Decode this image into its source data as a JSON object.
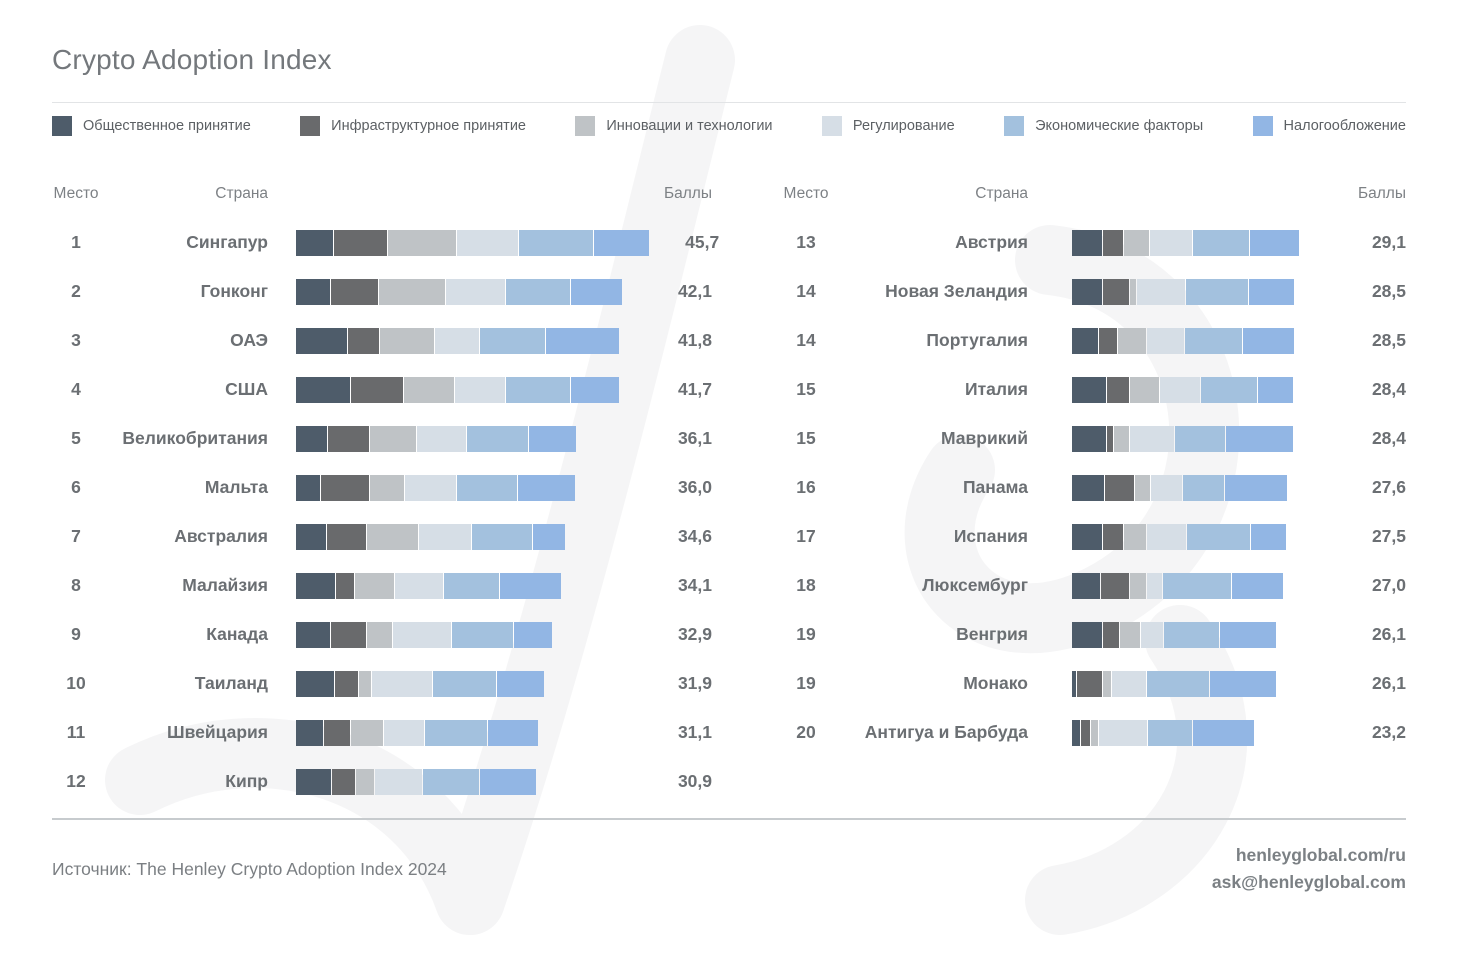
{
  "page_title": "Crypto Adoption Index",
  "legend": {
    "items": [
      {
        "label": "Общественное принятие",
        "color": "#4e5c6a"
      },
      {
        "label": "Инфраструктурное принятие",
        "color": "#696a6c"
      },
      {
        "label": "Инновации и технологии",
        "color": "#bfc3c6"
      },
      {
        "label": "Регулирование",
        "color": "#d6dee6"
      },
      {
        "label": "Экономические факторы",
        "color": "#a3c1de"
      },
      {
        "label": "Налогообложение",
        "color": "#92b6e4"
      }
    ]
  },
  "table_headers": {
    "rank": "Место",
    "country": "Страна",
    "score": "Баллы"
  },
  "chart_data": {
    "type": "bar",
    "stacked": true,
    "orientation": "horizontal",
    "title": "Crypto Adoption Index",
    "categories": [
      "Общественное принятие",
      "Инфраструктурное принятие",
      "Инновации и технологии",
      "Регулирование",
      "Экономические факторы",
      "Налогообложение"
    ],
    "colors": [
      "#4e5c6a",
      "#696a6c",
      "#bfc3c6",
      "#d6dee6",
      "#a3c1de",
      "#92b6e4"
    ],
    "legend_position": "top",
    "grid": false,
    "rows": [
      {
        "rank": "1",
        "country": "Сингапур",
        "score_label": "45,7",
        "score": 45.7,
        "segments": [
          4.8,
          7.0,
          8.9,
          8.1,
          9.6,
          7.3
        ]
      },
      {
        "rank": "2",
        "country": "Гонконг",
        "score_label": "42,1",
        "score": 42.1,
        "segments": [
          4.4,
          6.2,
          8.7,
          7.7,
          8.5,
          6.6
        ]
      },
      {
        "rank": "3",
        "country": "ОАЭ",
        "score_label": "41,8",
        "score": 41.8,
        "segments": [
          6.7,
          4.0,
          7.1,
          5.8,
          8.5,
          9.7
        ]
      },
      {
        "rank": "4",
        "country": "США",
        "score_label": "41,7",
        "score": 41.7,
        "segments": [
          7.1,
          6.8,
          6.6,
          6.6,
          8.3,
          6.3
        ]
      },
      {
        "rank": "5",
        "country": "Великобритания",
        "score_label": "36,1",
        "score": 36.1,
        "segments": [
          4.1,
          5.4,
          6.0,
          6.4,
          8.0,
          6.2
        ]
      },
      {
        "rank": "6",
        "country": "Мальта",
        "score_label": "36,0",
        "score": 36.0,
        "segments": [
          3.1,
          6.3,
          4.5,
          6.7,
          7.9,
          7.5
        ]
      },
      {
        "rank": "7",
        "country": "Австралия",
        "score_label": "34,6",
        "score": 34.6,
        "segments": [
          4.0,
          5.0,
          6.7,
          6.9,
          7.9,
          4.1
        ]
      },
      {
        "rank": "8",
        "country": "Малайзия",
        "score_label": "34,1",
        "score": 34.1,
        "segments": [
          5.1,
          2.4,
          5.1,
          6.3,
          7.2,
          8.0
        ]
      },
      {
        "rank": "9",
        "country": "Канада",
        "score_label": "32,9",
        "score": 32.9,
        "segments": [
          4.4,
          4.7,
          3.3,
          7.6,
          7.9,
          5.0
        ]
      },
      {
        "rank": "10",
        "country": "Таиланд",
        "score_label": "31,9",
        "score": 31.9,
        "segments": [
          5.0,
          3.0,
          1.6,
          7.8,
          8.3,
          6.2
        ]
      },
      {
        "rank": "11",
        "country": "Швейцария",
        "score_label": "31,1",
        "score": 31.1,
        "segments": [
          3.6,
          3.4,
          4.1,
          5.3,
          8.2,
          6.5
        ]
      },
      {
        "rank": "12",
        "country": "Кипр",
        "score_label": "30,9",
        "score": 30.9,
        "segments": [
          4.6,
          3.0,
          2.4,
          6.1,
          7.4,
          7.4
        ]
      },
      {
        "rank": "13",
        "country": "Австрия",
        "score_label": "29,1",
        "score": 29.1,
        "segments": [
          3.9,
          2.6,
          3.4,
          5.4,
          7.4,
          6.4
        ]
      },
      {
        "rank": "14",
        "country": "Новая Зеландия",
        "score_label": "28,5",
        "score": 28.5,
        "segments": [
          4.0,
          3.3,
          0.9,
          6.3,
          8.1,
          5.9
        ]
      },
      {
        "rank": "14",
        "country": "Португалия",
        "score_label": "28,5",
        "score": 28.5,
        "segments": [
          3.4,
          2.4,
          3.6,
          4.9,
          7.5,
          6.7
        ]
      },
      {
        "rank": "15",
        "country": "Италия",
        "score_label": "28,4",
        "score": 28.4,
        "segments": [
          4.5,
          2.8,
          3.9,
          5.2,
          7.3,
          4.7
        ]
      },
      {
        "rank": "15",
        "country": "Маврикий",
        "score_label": "28,4",
        "score": 28.4,
        "segments": [
          4.4,
          0.8,
          2.0,
          5.8,
          6.5,
          8.9
        ]
      },
      {
        "rank": "16",
        "country": "Панама",
        "score_label": "27,6",
        "score": 27.6,
        "segments": [
          4.2,
          3.8,
          2.0,
          4.1,
          5.3,
          8.2
        ]
      },
      {
        "rank": "17",
        "country": "Испания",
        "score_label": "27,5",
        "score": 27.5,
        "segments": [
          4.0,
          2.6,
          2.8,
          5.2,
          8.2,
          4.7
        ]
      },
      {
        "rank": "18",
        "country": "Люксембург",
        "score_label": "27,0",
        "score": 27.0,
        "segments": [
          3.7,
          3.7,
          2.1,
          1.9,
          9.0,
          6.6
        ]
      },
      {
        "rank": "19",
        "country": "Венгрия",
        "score_label": "26,1",
        "score": 26.1,
        "segments": [
          4.0,
          2.1,
          2.5,
          2.9,
          7.3,
          7.3
        ]
      },
      {
        "rank": "19",
        "country": "Монако",
        "score_label": "26,1",
        "score": 26.1,
        "segments": [
          0.5,
          3.3,
          1.0,
          4.5,
          8.1,
          8.7
        ]
      },
      {
        "rank": "20",
        "country": "Антигуа и Барбуда",
        "score_label": "23,2",
        "score": 23.2,
        "segments": [
          1.1,
          1.1,
          0.9,
          6.4,
          5.7,
          8.0
        ]
      }
    ]
  },
  "footer": {
    "source": "Источник: The Henley Crypto Adoption Index 2024",
    "website": "henleyglobal.com/ru",
    "email": "ask@henleyglobal.com"
  }
}
